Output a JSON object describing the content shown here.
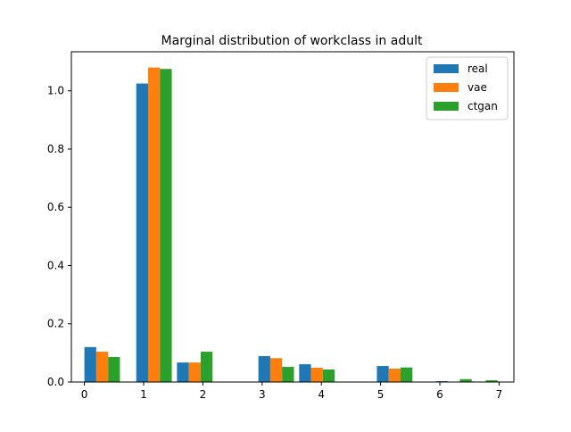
{
  "chart_data": {
    "type": "bar",
    "title": "Marginal distribution of workclass in adult",
    "xlabel": "",
    "ylabel": "",
    "xlim": [
      -0.22,
      7.25
    ],
    "ylim": [
      0,
      1.134
    ],
    "x_ticks": [
      0,
      1,
      2,
      3,
      4,
      5,
      6,
      7
    ],
    "y_ticks": [
      0.0,
      0.2,
      0.4,
      0.6,
      0.8,
      1.0
    ],
    "legend_position": "top-right",
    "grid": false,
    "bar_width": 0.2,
    "series": [
      {
        "name": "real",
        "color": "#1f77b4",
        "x": [
          0.0,
          0.875,
          1.5625,
          2.9375,
          3.625,
          4.9375,
          5.9375,
          6.375
        ],
        "values": [
          0.12,
          1.025,
          0.067,
          0.089,
          0.061,
          0.055,
          0.003,
          0.002
        ]
      },
      {
        "name": "vae",
        "color": "#ff7f0e",
        "x": [
          0.0,
          0.875,
          1.5625,
          2.9375,
          3.625,
          4.9375,
          5.9375,
          6.375
        ],
        "values": [
          0.104,
          1.08,
          0.067,
          0.082,
          0.049,
          0.046,
          0.0,
          0.001
        ]
      },
      {
        "name": "ctgan",
        "color": "#2ca02c",
        "x": [
          0.0,
          0.875,
          1.5625,
          2.9375,
          3.625,
          4.9375,
          5.9375,
          6.375
        ],
        "values": [
          0.086,
          1.075,
          0.104,
          0.052,
          0.043,
          0.05,
          0.01,
          0.006
        ]
      }
    ]
  }
}
